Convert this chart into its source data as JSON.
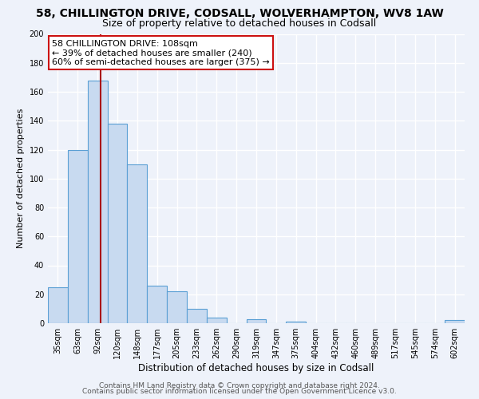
{
  "title1": "58, CHILLINGTON DRIVE, CODSALL, WOLVERHAMPTON, WV8 1AW",
  "title2": "Size of property relative to detached houses in Codsall",
  "xlabel": "Distribution of detached houses by size in Codsall",
  "ylabel": "Number of detached properties",
  "bar_labels": [
    "35sqm",
    "63sqm",
    "92sqm",
    "120sqm",
    "148sqm",
    "177sqm",
    "205sqm",
    "233sqm",
    "262sqm",
    "290sqm",
    "319sqm",
    "347sqm",
    "375sqm",
    "404sqm",
    "432sqm",
    "460sqm",
    "489sqm",
    "517sqm",
    "545sqm",
    "574sqm",
    "602sqm"
  ],
  "bar_values": [
    25,
    120,
    168,
    138,
    110,
    26,
    22,
    10,
    4,
    0,
    3,
    0,
    1,
    0,
    0,
    0,
    0,
    0,
    0,
    0,
    2
  ],
  "bar_color": "#c8daf0",
  "bar_edge_color": "#5a9fd4",
  "vline_color": "#aa1111",
  "annotation_text": "58 CHILLINGTON DRIVE: 108sqm\n← 39% of detached houses are smaller (240)\n60% of semi-detached houses are larger (375) →",
  "annotation_box_color": "white",
  "annotation_box_edge": "#cc1111",
  "ylim": [
    0,
    200
  ],
  "yticks": [
    0,
    20,
    40,
    60,
    80,
    100,
    120,
    140,
    160,
    180,
    200
  ],
  "footer1": "Contains HM Land Registry data © Crown copyright and database right 2024.",
  "footer2": "Contains public sector information licensed under the Open Government Licence v3.0.",
  "bg_color": "#eef2fa",
  "plot_bg_color": "#eef2fa",
  "grid_color": "#ffffff",
  "title1_fontsize": 10,
  "title2_fontsize": 9,
  "xlabel_fontsize": 8.5,
  "ylabel_fontsize": 8,
  "tick_fontsize": 7,
  "footer_fontsize": 6.5,
  "annot_fontsize": 8
}
